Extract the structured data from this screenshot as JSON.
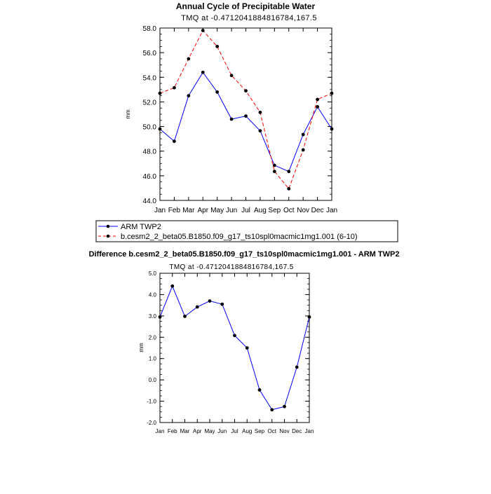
{
  "chart_data": [
    {
      "type": "line",
      "title": "Annual Cycle of Precipitable Water",
      "subtitle": "TMQ at -0.4712041884816784,167.5",
      "xlabel": "",
      "ylabel": "mm",
      "categories": [
        "Jan",
        "Feb",
        "Mar",
        "Apr",
        "May",
        "Jun",
        "Jul",
        "Aug",
        "Sep",
        "Oct",
        "Nov",
        "Dec",
        "Jan"
      ],
      "ylim": [
        44.0,
        58.0
      ],
      "yticks": [
        "44.0",
        "46.0",
        "48.0",
        "50.0",
        "52.0",
        "54.0",
        "56.0",
        "58.0"
      ],
      "grid": false,
      "legend_position": "bottom",
      "series": [
        {
          "name": "ARM TWP2",
          "color": "#0000ff",
          "style": "solid",
          "values": [
            49.8,
            48.8,
            52.5,
            54.4,
            52.8,
            50.6,
            50.85,
            49.65,
            46.85,
            46.35,
            49.35,
            51.6,
            49.8
          ]
        },
        {
          "name": "b.cesm2_2_beta05.B1850.f09_g17_ts10spl0macmic1mg1.001 (6-10)",
          "color": "#ff0000",
          "style": "dashed",
          "values": [
            52.7,
            53.15,
            55.5,
            57.8,
            56.5,
            54.15,
            52.9,
            51.15,
            46.35,
            44.95,
            48.1,
            52.2,
            52.7
          ]
        }
      ]
    },
    {
      "type": "line",
      "title": "Difference b.cesm2_2_beta05.B1850.f09_g17_ts10spl0macmic1mg1.001 - ARM TWP2",
      "subtitle": "TMQ at -0.4712041884816784,167.5",
      "xlabel": "",
      "ylabel": "mm",
      "categories": [
        "Jan",
        "Feb",
        "Mar",
        "Apr",
        "May",
        "Jun",
        "Jul",
        "Aug",
        "Sep",
        "Oct",
        "Nov",
        "Dec",
        "Jan"
      ],
      "ylim": [
        -2.0,
        5.0
      ],
      "yticks": [
        "-2.0",
        "-1.0",
        "0.0",
        "1.0",
        "2.0",
        "3.0",
        "4.0",
        "5.0"
      ],
      "grid": false,
      "series": [
        {
          "color": "#0000ff",
          "style": "solid",
          "values": [
            2.95,
            4.4,
            2.98,
            3.42,
            3.7,
            3.55,
            2.08,
            1.5,
            -0.47,
            -1.4,
            -1.25,
            0.6,
            2.95
          ]
        }
      ]
    }
  ]
}
